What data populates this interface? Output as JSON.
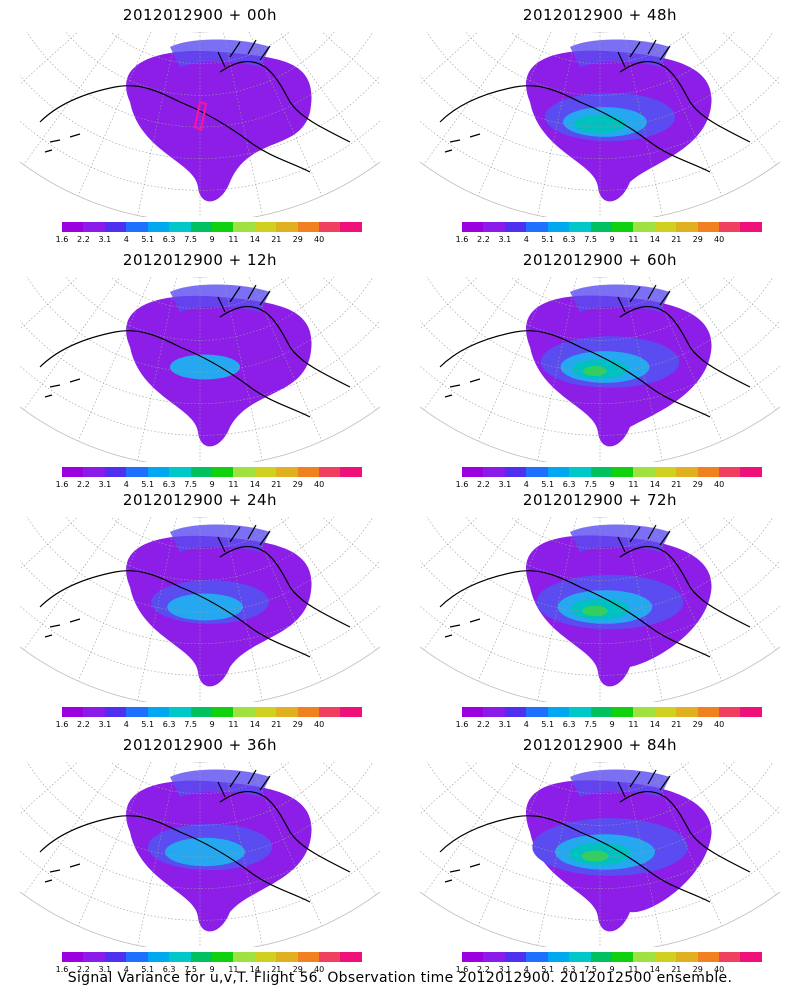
{
  "footer": "Signal Variance for u,v,T. Flight 56. Observation time 2012012900. 2012012500 ensemble.",
  "panels": [
    {
      "title": "2012012900 + 00h",
      "intensity": 0.15
    },
    {
      "title": "2012012900 + 48h",
      "intensity": 0.55
    },
    {
      "title": "2012012900 + 12h",
      "intensity": 0.3
    },
    {
      "title": "2012012900 + 60h",
      "intensity": 0.65
    },
    {
      "title": "2012012900 + 24h",
      "intensity": 0.4
    },
    {
      "title": "2012012900 + 72h",
      "intensity": 0.75
    },
    {
      "title": "2012012900 + 36h",
      "intensity": 0.48
    },
    {
      "title": "2012012900 + 84h",
      "intensity": 0.85
    }
  ],
  "colorbar": {
    "labels": [
      "1.6",
      "2.2",
      "3.1",
      "4",
      "5.1",
      "6.3",
      "7.5",
      "9",
      "11",
      "14",
      "21",
      "29",
      "40"
    ],
    "colors": [
      "#9b00e0",
      "#8a1be8",
      "#5030f0",
      "#2070ff",
      "#00a8f0",
      "#00c8c8",
      "#00c060",
      "#10d010",
      "#a0e040",
      "#d0d020",
      "#e0b020",
      "#f08020",
      "#f04060",
      "#f0107a"
    ]
  },
  "map_colors": {
    "low": "#8c1ee8",
    "mid1": "#5a4cf0",
    "mid2": "#25a8f0",
    "mid3": "#00c0c0",
    "high": "#30d060",
    "track": "#ff1493"
  }
}
